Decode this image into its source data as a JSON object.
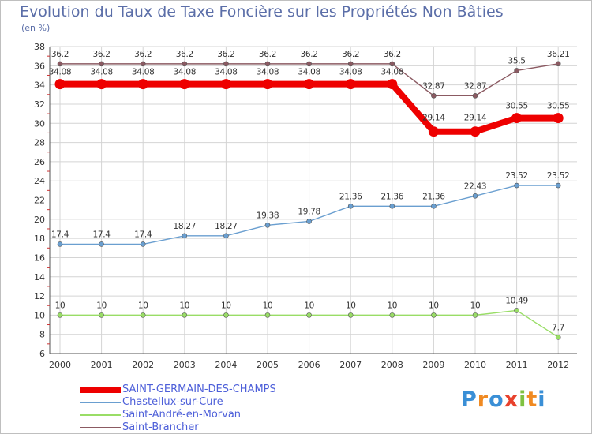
{
  "header": {
    "title": "Evolution du Taux de Taxe Foncière sur les Propriétés Non Bâties",
    "subtitle": "(en %)"
  },
  "logo": {
    "letters": [
      "P",
      "r",
      "o",
      "x",
      "i",
      "t",
      "i"
    ],
    "colors": [
      "#3a8fd6",
      "#f08a22",
      "#3a8fd6",
      "#e8412c",
      "#7fc241",
      "#f08a22",
      "#3a8fd6"
    ]
  },
  "chart_data": {
    "type": "line",
    "title": "Evolution du Taux de Taxe Foncière sur les Propriétés Non Bâties",
    "ylabel": "(en %)",
    "xlabel": "",
    "x": [
      "2000",
      "2001",
      "2002",
      "2003",
      "2004",
      "2005",
      "2006",
      "2007",
      "2008",
      "2009",
      "2010",
      "2011",
      "2012"
    ],
    "ylim": [
      6,
      38
    ],
    "yticks": [
      6,
      8,
      10,
      12,
      14,
      16,
      18,
      20,
      22,
      24,
      26,
      28,
      30,
      32,
      34,
      36,
      38
    ],
    "grid": true,
    "legend_position": "bottom-left",
    "series": [
      {
        "name": "SAINT-GERMAIN-DES-CHAMPS",
        "color": "#ee0000",
        "values": [
          34.08,
          34.08,
          34.08,
          34.08,
          34.08,
          34.08,
          34.08,
          34.08,
          34.08,
          29.14,
          29.14,
          30.55,
          30.55
        ],
        "labels": [
          "34.08",
          "34.08",
          "34.08",
          "34.08",
          "34.08",
          "34.08",
          "34.08",
          "34.08",
          "34.08",
          "29.14",
          "29.14",
          "30.55",
          "30.55"
        ]
      },
      {
        "name": "Chastellux-sur-Cure",
        "color": "#6a9fd0",
        "values": [
          17.4,
          17.4,
          17.4,
          18.27,
          18.27,
          19.38,
          19.78,
          21.36,
          21.36,
          21.36,
          22.43,
          23.52,
          23.52
        ],
        "labels": [
          "17.4",
          "17.4",
          "17.4",
          "18.27",
          "18.27",
          "19.38",
          "19.78",
          "21.36",
          "21.36",
          "21.36",
          "22.43",
          "23.52",
          "23.52"
        ]
      },
      {
        "name": "Saint-André-en-Morvan",
        "color": "#99dd66",
        "values": [
          10,
          10,
          10,
          10,
          10,
          10,
          10,
          10,
          10,
          10,
          10,
          10.49,
          7.7
        ],
        "labels": [
          "10",
          "10",
          "10",
          "10",
          "10",
          "10",
          "10",
          "10",
          "10",
          "10",
          "10",
          "10.49",
          "7.7"
        ]
      },
      {
        "name": "Saint-Brancher",
        "color": "#8b5a62",
        "values": [
          36.2,
          36.2,
          36.2,
          36.2,
          36.2,
          36.2,
          36.2,
          36.2,
          36.2,
          32.87,
          32.87,
          35.5,
          36.21
        ],
        "labels": [
          "36.2",
          "36.2",
          "36.2",
          "36.2",
          "36.2",
          "36.2",
          "36.2",
          "36.2",
          "36.2",
          "32.87",
          "32.87",
          "35.5",
          "36.21"
        ]
      }
    ]
  }
}
